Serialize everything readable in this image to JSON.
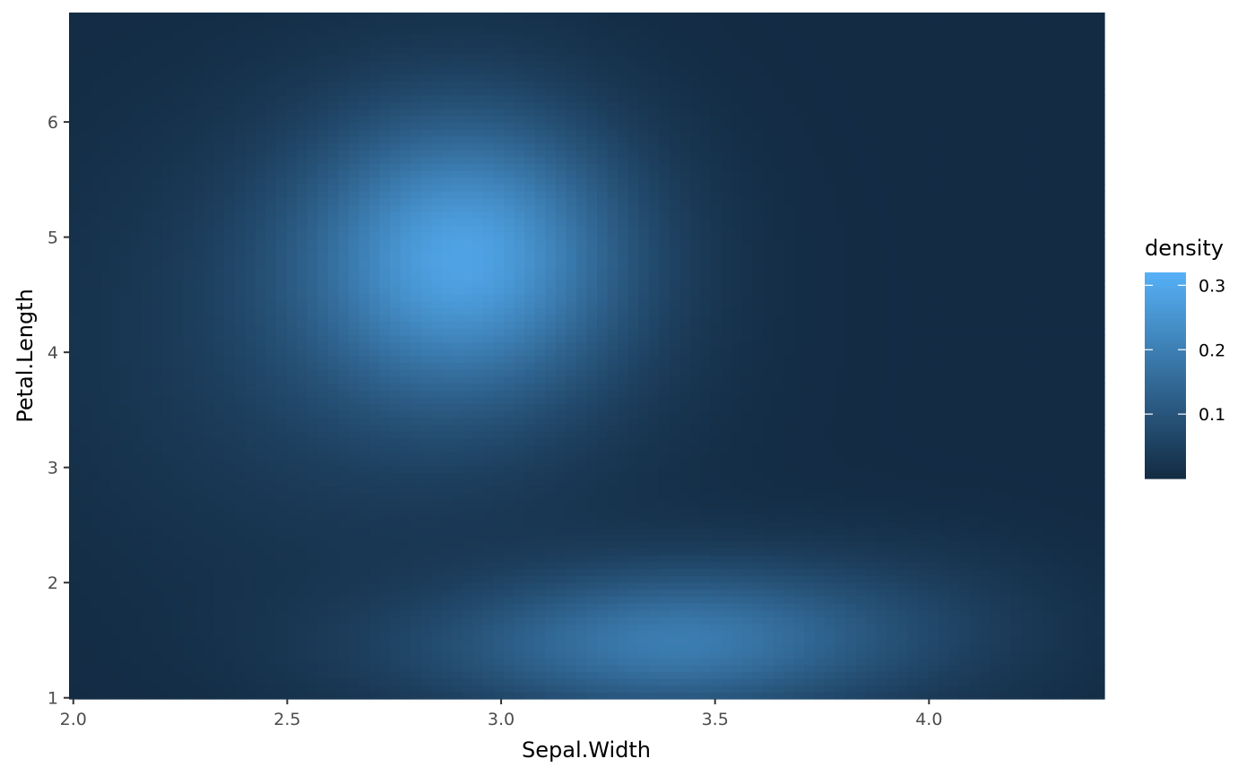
{
  "chart_data": {
    "type": "heatmap",
    "xlabel": "Sepal.Width",
    "ylabel": "Petal.Length",
    "xlim": [
      1.99,
      4.41
    ],
    "ylim": [
      0.99,
      6.95
    ],
    "x_ticks": [
      2.0,
      2.5,
      3.0,
      3.5,
      4.0
    ],
    "x_tick_labels": [
      "2.0",
      "2.5",
      "3.0",
      "3.5",
      "4.0"
    ],
    "y_ticks": [
      1,
      2,
      3,
      4,
      5,
      6
    ],
    "y_tick_labels": [
      "1",
      "2",
      "3",
      "4",
      "5",
      "6"
    ],
    "fill": "density",
    "grid": false,
    "legend": {
      "title": "density",
      "placement": "right",
      "breaks": [
        0.1,
        0.2,
        0.3
      ],
      "labels": [
        "0.1",
        "0.2",
        "0.3"
      ],
      "range": [
        0.0,
        0.32
      ],
      "low_color": "#132B43",
      "high_color": "#56B1F7"
    },
    "density_peaks": [
      {
        "x": 2.92,
        "y": 4.85,
        "density": 0.32
      },
      {
        "x": 3.42,
        "y": 1.5,
        "density": 0.19
      }
    ]
  }
}
